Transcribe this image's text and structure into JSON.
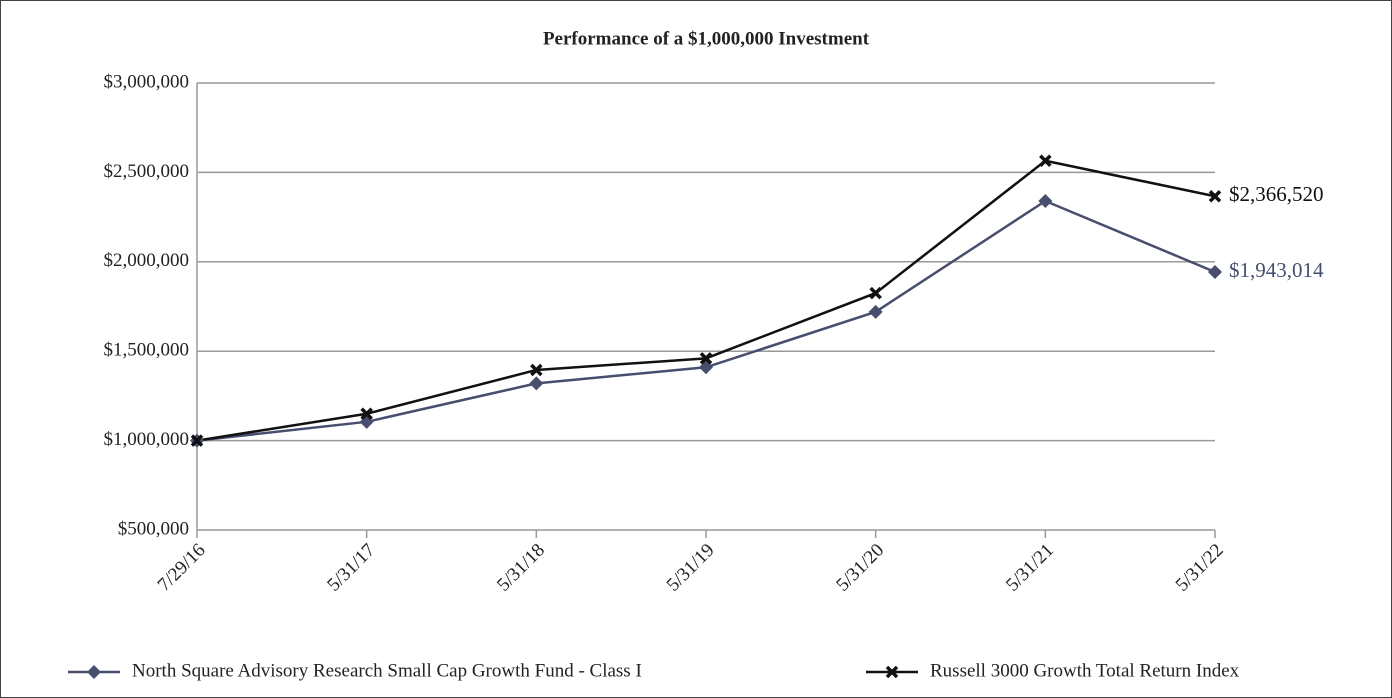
{
  "chart_data": {
    "type": "line",
    "title": "Performance of a $1,000,000 Investment",
    "categories": [
      "7/29/16",
      "5/31/17",
      "5/31/18",
      "5/31/19",
      "5/31/20",
      "5/31/21",
      "5/31/22"
    ],
    "series": [
      {
        "name": "North Square Advisory Research Small Cap Growth Fund - Class I",
        "color": "#474e6e",
        "marker": "diamond",
        "values": [
          1000000,
          1105000,
          1320000,
          1410000,
          1720000,
          2340000,
          1943014
        ],
        "value_labels": [
          null,
          null,
          null,
          null,
          null,
          null,
          "$1,943,014"
        ]
      },
      {
        "name": "Russell 3000 Growth Total Return Index",
        "color": "#111111",
        "marker": "cross",
        "values": [
          1000000,
          1150000,
          1395000,
          1460000,
          1825000,
          2565000,
          2366520
        ],
        "value_labels": [
          null,
          null,
          null,
          null,
          null,
          null,
          "$2,366,520"
        ]
      }
    ],
    "ylim": [
      500000,
      3000000
    ],
    "yticks": [
      {
        "value": 500000,
        "label": "$500,000"
      },
      {
        "value": 1000000,
        "label": "$1,000,000"
      },
      {
        "value": 1500000,
        "label": "$1,500,000"
      },
      {
        "value": 2000000,
        "label": "$2,000,000"
      },
      {
        "value": 2500000,
        "label": "$2,500,000"
      },
      {
        "value": 3000000,
        "label": "$3,000,000"
      }
    ],
    "grid": true
  }
}
